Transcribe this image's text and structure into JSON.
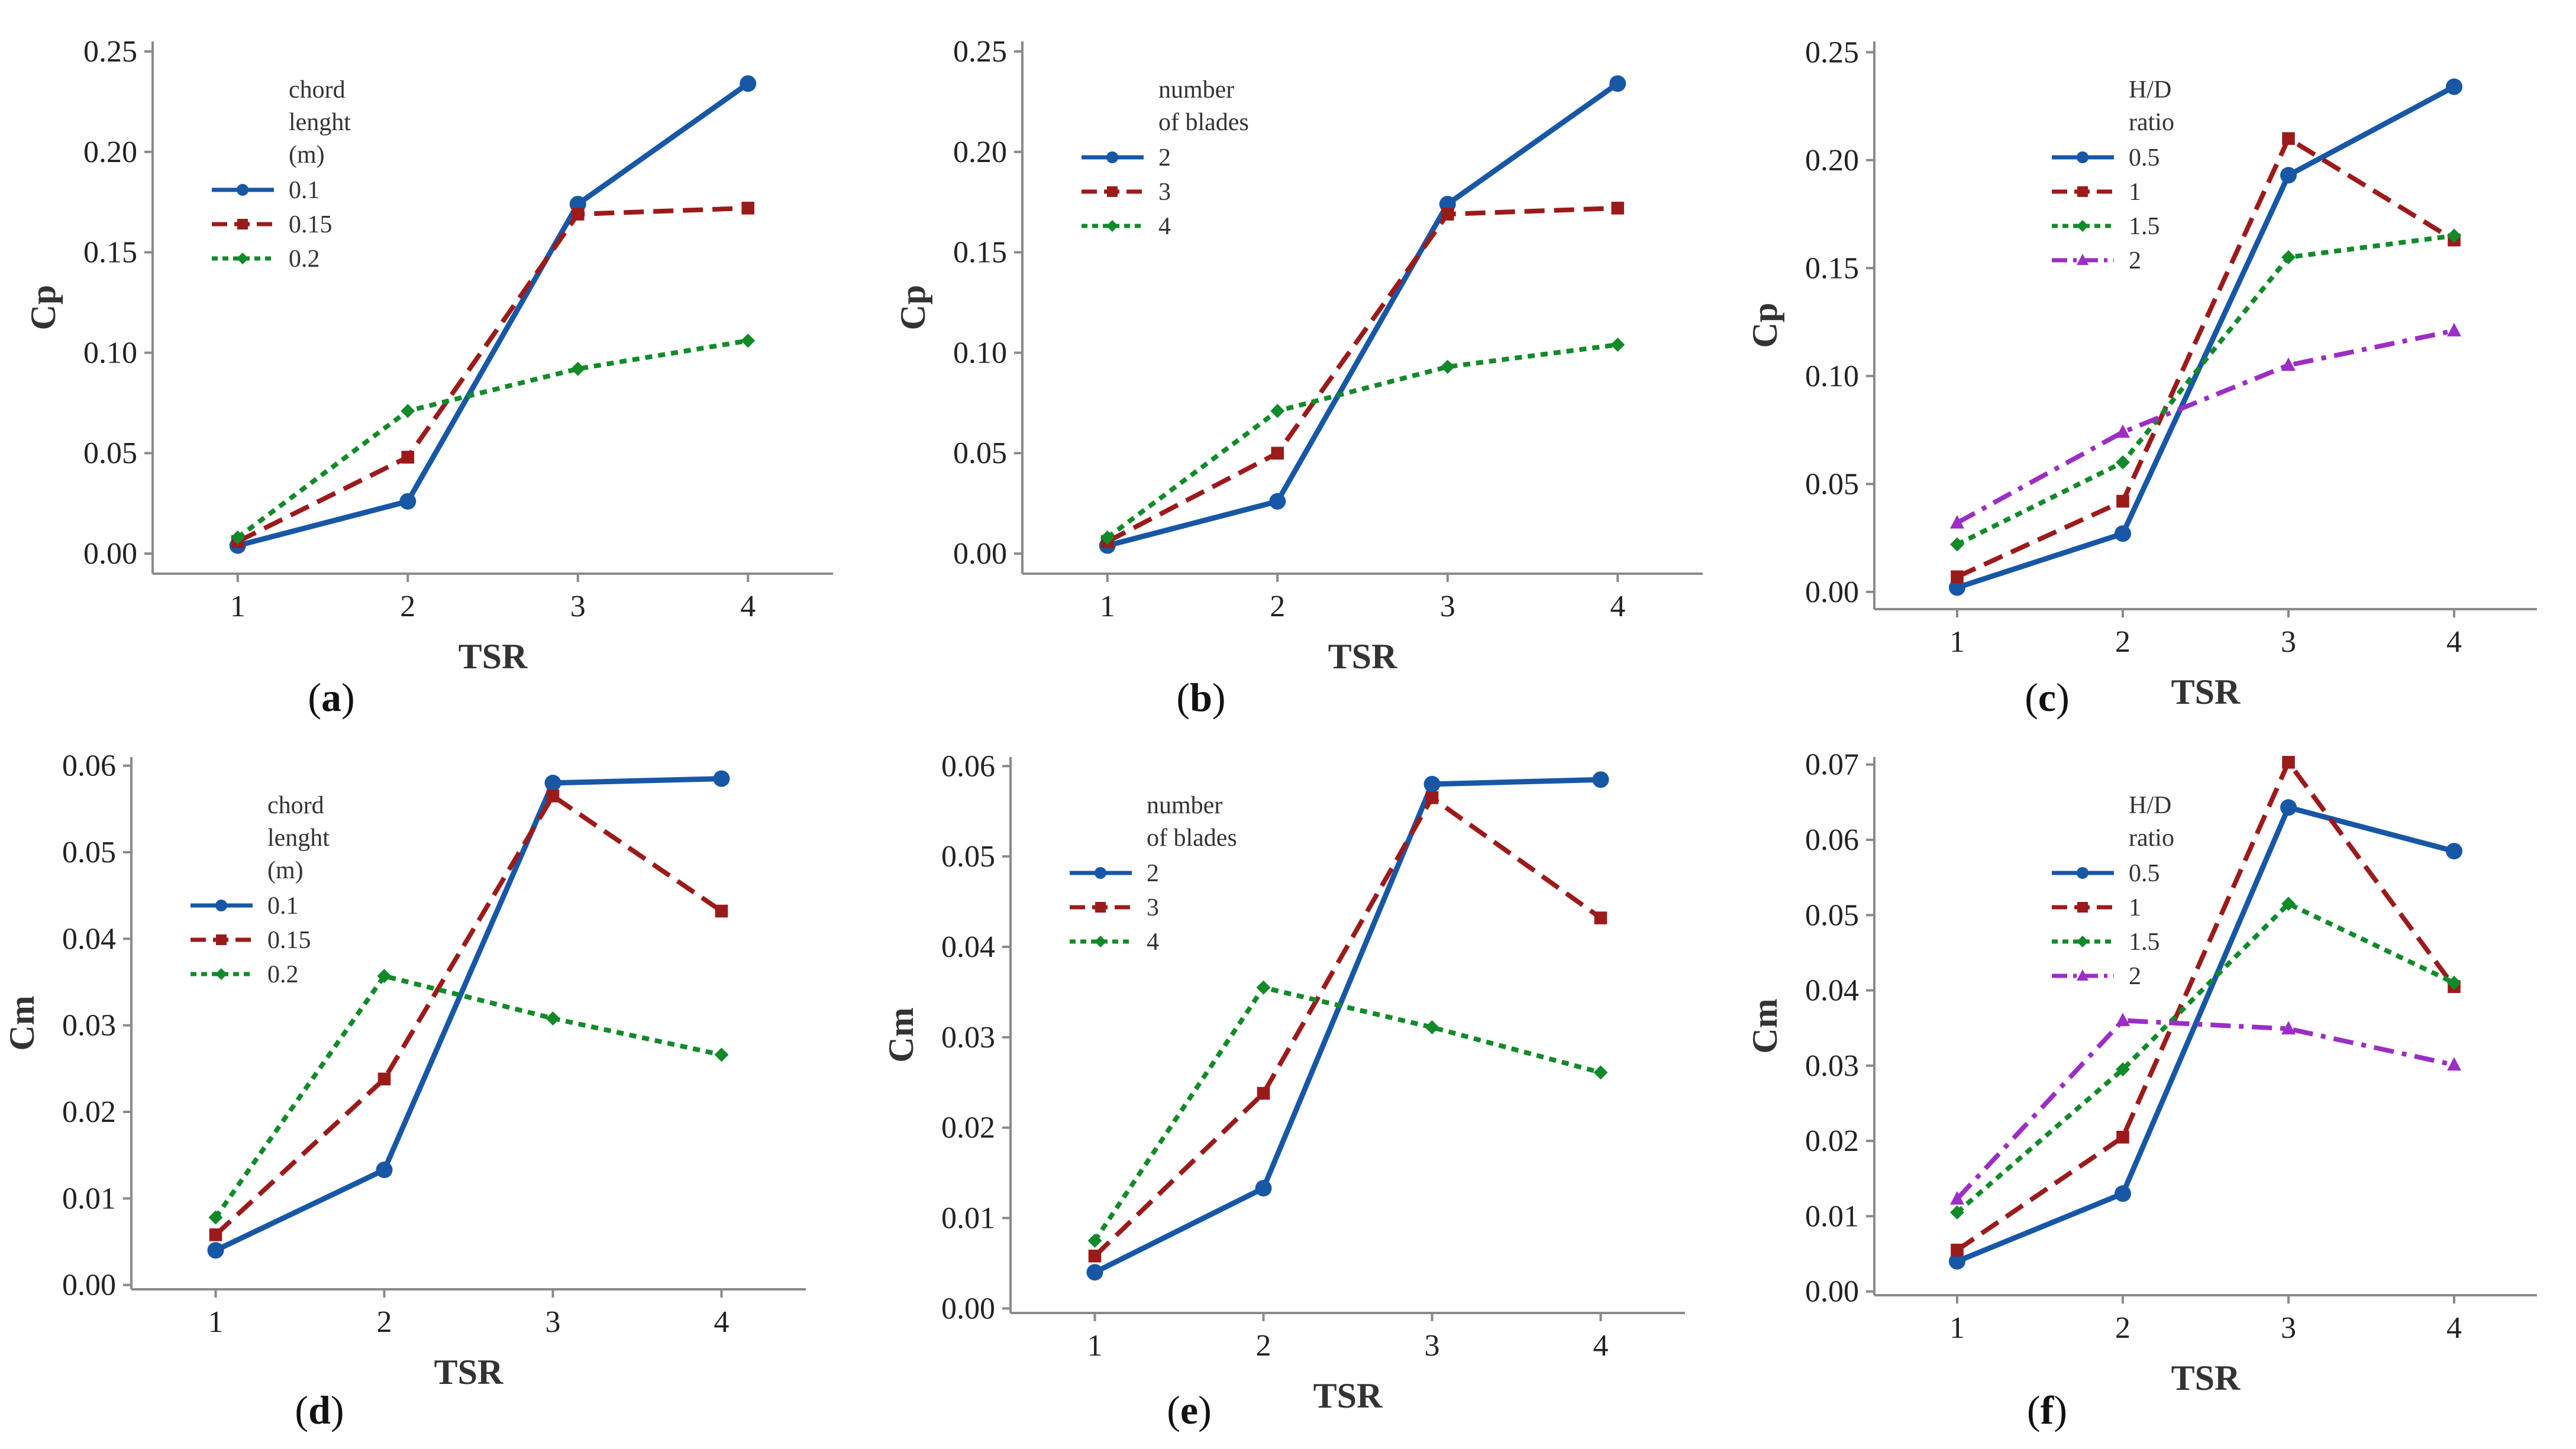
{
  "colors": {
    "blue": "#1757a6",
    "red": "#9b1b1b",
    "green": "#128a2a",
    "purple": "#9b2ec4"
  },
  "chart_data": [
    {
      "id": "a",
      "type": "line",
      "caption_letter": "a",
      "xlabel": "TSR",
      "ylabel": "Cp",
      "x": [
        1,
        2,
        3,
        4
      ],
      "x_ticks": [
        "1",
        "2",
        "3",
        "4"
      ],
      "ylim": [
        -0.01,
        0.255
      ],
      "y_ticks": [
        "0.00",
        "0.05",
        "0.10",
        "0.15",
        "0.20",
        "0.25"
      ],
      "legend_title": [
        "chord",
        "lenght",
        "(m)"
      ],
      "legend_position": "top-left",
      "series": [
        {
          "name": "0.1",
          "style": "solid",
          "marker": "circle",
          "color": "#1757a6",
          "values": [
            0.004,
            0.026,
            0.174,
            0.234
          ]
        },
        {
          "name": "0.15",
          "style": "dashed",
          "marker": "square",
          "color": "#9b1b1b",
          "values": [
            0.006,
            0.048,
            0.169,
            0.172
          ]
        },
        {
          "name": "0.2",
          "style": "dotted",
          "marker": "diamond",
          "color": "#128a2a",
          "values": [
            0.008,
            0.071,
            0.092,
            0.106
          ]
        }
      ]
    },
    {
      "id": "b",
      "type": "line",
      "caption_letter": "b",
      "xlabel": "TSR",
      "ylabel": "Cp",
      "x": [
        1,
        2,
        3,
        4
      ],
      "x_ticks": [
        "1",
        "2",
        "3",
        "4"
      ],
      "ylim": [
        -0.01,
        0.255
      ],
      "y_ticks": [
        "0.00",
        "0.05",
        "0.10",
        "0.15",
        "0.20",
        "0.25"
      ],
      "legend_title": [
        "number",
        "of blades"
      ],
      "legend_position": "top-left",
      "series": [
        {
          "name": "2",
          "style": "solid",
          "marker": "circle",
          "color": "#1757a6",
          "values": [
            0.004,
            0.026,
            0.174,
            0.234
          ]
        },
        {
          "name": "3",
          "style": "dashed",
          "marker": "square",
          "color": "#9b1b1b",
          "values": [
            0.006,
            0.05,
            0.169,
            0.172
          ]
        },
        {
          "name": "4",
          "style": "dotted",
          "marker": "diamond",
          "color": "#128a2a",
          "values": [
            0.008,
            0.071,
            0.093,
            0.104
          ]
        }
      ]
    },
    {
      "id": "c",
      "type": "line",
      "caption_letter": "c",
      "xlabel": "TSR",
      "ylabel": "Cp",
      "x": [
        1,
        2,
        3,
        4
      ],
      "x_ticks": [
        "1",
        "2",
        "3",
        "4"
      ],
      "ylim": [
        -0.008,
        0.255
      ],
      "y_ticks": [
        "0.00",
        "0.05",
        "0.10",
        "0.15",
        "0.20",
        "0.25"
      ],
      "legend_title": [
        "H/D",
        "ratio"
      ],
      "legend_position": "top-left",
      "series": [
        {
          "name": "0.5",
          "style": "solid",
          "marker": "circle",
          "color": "#1757a6",
          "values": [
            0.002,
            0.027,
            0.193,
            0.234
          ]
        },
        {
          "name": "1",
          "style": "dashed",
          "marker": "square",
          "color": "#9b1b1b",
          "values": [
            0.007,
            0.042,
            0.21,
            0.163
          ]
        },
        {
          "name": "1.5",
          "style": "dotted",
          "marker": "diamond",
          "color": "#128a2a",
          "values": [
            0.022,
            0.06,
            0.155,
            0.165
          ]
        },
        {
          "name": "2",
          "style": "dashdot",
          "marker": "triangle",
          "color": "#9b2ec4",
          "values": [
            0.032,
            0.074,
            0.105,
            0.121
          ]
        }
      ]
    },
    {
      "id": "d",
      "type": "line",
      "caption_letter": "d",
      "xlabel": "TSR",
      "ylabel": "Cm",
      "x": [
        1,
        2,
        3,
        4
      ],
      "x_ticks": [
        "1",
        "2",
        "3",
        "4"
      ],
      "ylim": [
        -0.0005,
        0.061
      ],
      "y_ticks": [
        "0.00",
        "0.01",
        "0.02",
        "0.03",
        "0.04",
        "0.05",
        "0.06"
      ],
      "legend_title": [
        "chord",
        "lenght",
        "(m)"
      ],
      "legend_position": "top-left",
      "series": [
        {
          "name": "0.1",
          "style": "solid",
          "marker": "circle",
          "color": "#1757a6",
          "values": [
            0.004,
            0.0133,
            0.058,
            0.0585
          ]
        },
        {
          "name": "0.15",
          "style": "dashed",
          "marker": "square",
          "color": "#9b1b1b",
          "values": [
            0.0058,
            0.0238,
            0.0565,
            0.0432
          ]
        },
        {
          "name": "0.2",
          "style": "dotted",
          "marker": "diamond",
          "color": "#128a2a",
          "values": [
            0.0078,
            0.0357,
            0.0308,
            0.0266
          ]
        }
      ]
    },
    {
      "id": "e",
      "type": "line",
      "caption_letter": "e",
      "xlabel": "TSR",
      "ylabel": "Cm",
      "x": [
        1,
        2,
        3,
        4
      ],
      "x_ticks": [
        "1",
        "2",
        "3",
        "4"
      ],
      "ylim": [
        -0.0005,
        0.061
      ],
      "y_ticks": [
        "0.00",
        "0.01",
        "0.02",
        "0.03",
        "0.04",
        "0.05",
        "0.06"
      ],
      "legend_title": [
        "number",
        "of blades"
      ],
      "legend_position": "top-left",
      "series": [
        {
          "name": "2",
          "style": "solid",
          "marker": "circle",
          "color": "#1757a6",
          "values": [
            0.004,
            0.0133,
            0.058,
            0.0585
          ]
        },
        {
          "name": "3",
          "style": "dashed",
          "marker": "square",
          "color": "#9b1b1b",
          "values": [
            0.0058,
            0.0238,
            0.0565,
            0.0432
          ]
        },
        {
          "name": "4",
          "style": "dotted",
          "marker": "diamond",
          "color": "#128a2a",
          "values": [
            0.0075,
            0.0355,
            0.0311,
            0.0261
          ]
        }
      ]
    },
    {
      "id": "f",
      "type": "line",
      "caption_letter": "f",
      "xlabel": "TSR",
      "ylabel": "Cm",
      "x": [
        1,
        2,
        3,
        4
      ],
      "x_ticks": [
        "1",
        "2",
        "3",
        "4"
      ],
      "ylim": [
        -0.0005,
        0.071
      ],
      "y_ticks": [
        "0.00",
        "0.01",
        "0.02",
        "0.03",
        "0.04",
        "0.05",
        "0.06",
        "0.07"
      ],
      "legend_title": [
        "H/D",
        "ratio"
      ],
      "legend_position": "top-left",
      "series": [
        {
          "name": "0.5",
          "style": "solid",
          "marker": "circle",
          "color": "#1757a6",
          "values": [
            0.004,
            0.013,
            0.0643,
            0.0585
          ]
        },
        {
          "name": "1",
          "style": "dashed",
          "marker": "square",
          "color": "#9b1b1b",
          "values": [
            0.0055,
            0.0205,
            0.0703,
            0.0405
          ]
        },
        {
          "name": "1.5",
          "style": "dotted",
          "marker": "diamond",
          "color": "#128a2a",
          "values": [
            0.0105,
            0.0295,
            0.0515,
            0.041
          ]
        },
        {
          "name": "2",
          "style": "dashdot",
          "marker": "triangle",
          "color": "#9b2ec4",
          "values": [
            0.0123,
            0.036,
            0.0349,
            0.0301
          ]
        }
      ]
    }
  ]
}
